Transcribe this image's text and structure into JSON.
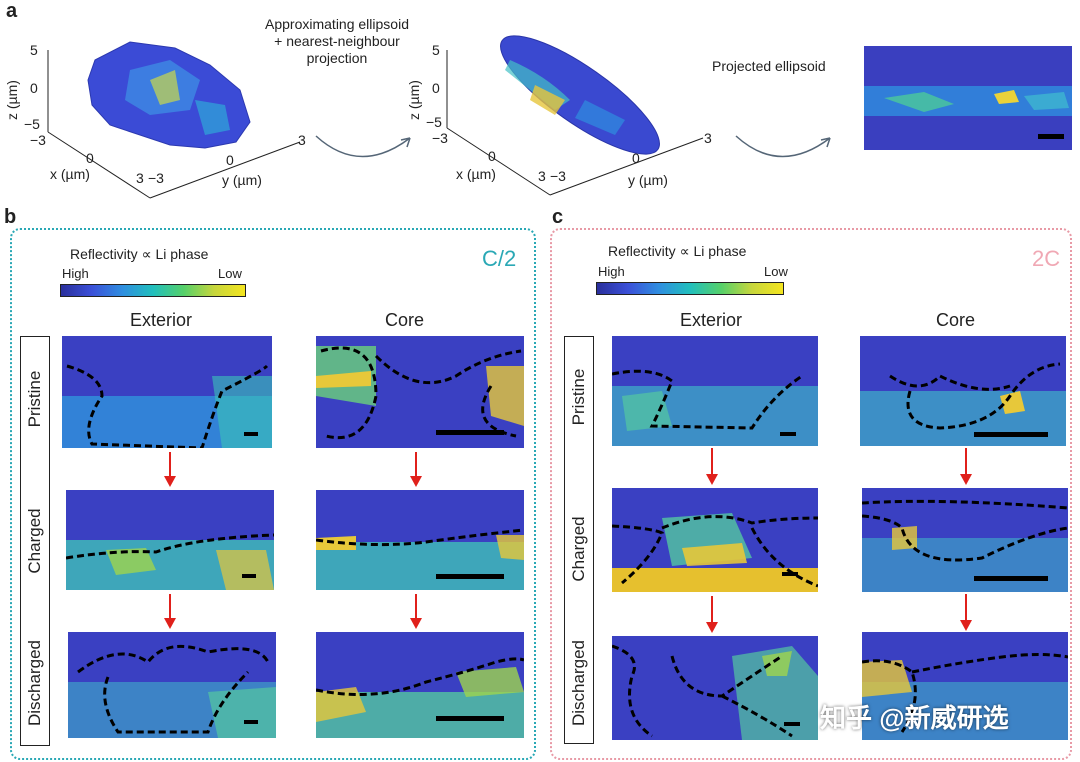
{
  "panel_a": {
    "letter": "a",
    "plot1": {
      "z_label": "z (µm)",
      "x_label": "x (µm)",
      "y_label": "y (µm)",
      "z_ticks": [
        "5",
        "0",
        "−5"
      ],
      "x_ticks": [
        "−3",
        "0",
        "3"
      ],
      "y_ticks": [
        "−3",
        "0",
        "3"
      ]
    },
    "note_line1": "Approximating ellipsoid",
    "note_line2": "+ nearest-neighbour",
    "note_line3": "projection",
    "plot2": {
      "z_label": "z (µm)",
      "x_label": "x (µm)",
      "y_label": "y (µm)",
      "z_ticks": [
        "5",
        "0",
        "−5"
      ],
      "x_ticks": [
        "−3",
        "0",
        "3"
      ],
      "y_ticks": [
        "−3",
        "0",
        "3"
      ]
    },
    "projected_label": "Projected ellipsoid"
  },
  "panel_b": {
    "letter": "b",
    "colorbar_title": "Reflectivity ∝ Li phase",
    "high": "High",
    "low": "Low",
    "rate": "C/2",
    "col_exterior": "Exterior",
    "col_core": "Core",
    "rows": [
      "Pristine",
      "Charged",
      "Discharged"
    ]
  },
  "panel_c": {
    "letter": "c",
    "colorbar_title": "Reflectivity ∝ Li phase",
    "high": "High",
    "low": "Low",
    "rate": "2C",
    "col_exterior": "Exterior",
    "col_core": "Core",
    "rows": [
      "Pristine",
      "Charged",
      "Discharged"
    ]
  },
  "watermark": "知乎 @新威研选",
  "colors": {
    "b_border": "#2aa8b5",
    "c_border": "#e89aa6",
    "b_rate": "#2aa8b5",
    "c_rate": "#f0a8b4",
    "arrow": "#e0201b"
  }
}
